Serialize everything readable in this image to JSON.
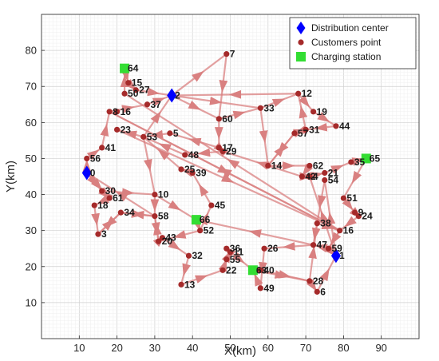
{
  "chart_data": {
    "type": "scatter",
    "xlabel": "X(km)",
    "ylabel": "Y(km)",
    "xlim": [
      0,
      100
    ],
    "ylim": [
      0,
      90
    ],
    "xticks": [
      10,
      20,
      30,
      40,
      50,
      60,
      70,
      80,
      90
    ],
    "yticks": [
      10,
      20,
      30,
      40,
      50,
      60,
      70,
      80
    ],
    "grid": true,
    "legend_position": "top-right",
    "legend": [
      {
        "label": "Distribution center",
        "marker": "diamond",
        "color": "#0000ff"
      },
      {
        "label": "Customers point",
        "marker": "circle",
        "color": "#a52a2a"
      },
      {
        "label": "Charging station",
        "marker": "square",
        "color": "#33dd33"
      }
    ],
    "route_color": "#d98080",
    "depots": [
      {
        "id": "0",
        "x": 12,
        "y": 46
      },
      {
        "id": "2",
        "x": 34.5,
        "y": 67.5
      },
      {
        "id": "1",
        "x": 78,
        "y": 23
      }
    ],
    "customers": [
      {
        "id": "7",
        "x": 49,
        "y": 79
      },
      {
        "id": "15",
        "x": 23,
        "y": 71
      },
      {
        "id": "27",
        "x": 25,
        "y": 69
      },
      {
        "id": "50",
        "x": 22,
        "y": 68
      },
      {
        "id": "37",
        "x": 28,
        "y": 65
      },
      {
        "id": "8",
        "x": 18,
        "y": 63
      },
      {
        "id": "16",
        "x": 20,
        "y": 63
      },
      {
        "id": "23",
        "x": 20,
        "y": 58
      },
      {
        "id": "53",
        "x": 27,
        "y": 56
      },
      {
        "id": "5",
        "x": 34,
        "y": 57
      },
      {
        "id": "41",
        "x": 16,
        "y": 53
      },
      {
        "id": "56",
        "x": 12,
        "y": 50
      },
      {
        "id": "30",
        "x": 16,
        "y": 41
      },
      {
        "id": "61",
        "x": 18,
        "y": 39
      },
      {
        "id": "18",
        "x": 14,
        "y": 37
      },
      {
        "id": "34",
        "x": 21,
        "y": 35
      },
      {
        "id": "3",
        "x": 15,
        "y": 29
      },
      {
        "id": "10",
        "x": 30,
        "y": 40
      },
      {
        "id": "58",
        "x": 30,
        "y": 34
      },
      {
        "id": "20",
        "x": 31,
        "y": 27
      },
      {
        "id": "43",
        "x": 32,
        "y": 28
      },
      {
        "id": "32",
        "x": 39,
        "y": 23
      },
      {
        "id": "13",
        "x": 37,
        "y": 15
      },
      {
        "id": "52",
        "x": 42,
        "y": 30
      },
      {
        "id": "45",
        "x": 45,
        "y": 37
      },
      {
        "id": "25",
        "x": 37,
        "y": 47
      },
      {
        "id": "39",
        "x": 40,
        "y": 46
      },
      {
        "id": "48",
        "x": 38,
        "y": 51
      },
      {
        "id": "17",
        "x": 47,
        "y": 53
      },
      {
        "id": "29",
        "x": 48,
        "y": 52
      },
      {
        "id": "60",
        "x": 47,
        "y": 61
      },
      {
        "id": "33",
        "x": 58,
        "y": 64
      },
      {
        "id": "14",
        "x": 60,
        "y": 48
      },
      {
        "id": "36",
        "x": 49,
        "y": 25
      },
      {
        "id": "11",
        "x": 50,
        "y": 24
      },
      {
        "id": "55",
        "x": 49,
        "y": 22
      },
      {
        "id": "22",
        "x": 48,
        "y": 19
      },
      {
        "id": "26",
        "x": 59,
        "y": 25
      },
      {
        "id": "49",
        "x": 58,
        "y": 14
      },
      {
        "id": "40",
        "x": 58,
        "y": 19
      },
      {
        "id": "12",
        "x": 68,
        "y": 68
      },
      {
        "id": "19",
        "x": 72,
        "y": 63
      },
      {
        "id": "44",
        "x": 78,
        "y": 59
      },
      {
        "id": "57",
        "x": 67,
        "y": 57
      },
      {
        "id": "31",
        "x": 70,
        "y": 58
      },
      {
        "id": "62",
        "x": 71,
        "y": 48
      },
      {
        "id": "42",
        "x": 69,
        "y": 45
      },
      {
        "id": "4",
        "x": 71,
        "y": 45
      },
      {
        "id": "21",
        "x": 75,
        "y": 46
      },
      {
        "id": "54",
        "x": 75,
        "y": 44
      },
      {
        "id": "35",
        "x": 82,
        "y": 49
      },
      {
        "id": "51",
        "x": 80,
        "y": 39
      },
      {
        "id": "9",
        "x": 83,
        "y": 35
      },
      {
        "id": "24",
        "x": 84,
        "y": 34
      },
      {
        "id": "38",
        "x": 73,
        "y": 32
      },
      {
        "id": "16",
        "x": 79,
        "y": 30
      },
      {
        "id": "47",
        "x": 72,
        "y": 26
      },
      {
        "id": "59",
        "x": 76,
        "y": 25
      },
      {
        "id": "28",
        "x": 71,
        "y": 16
      },
      {
        "id": "6",
        "x": 73,
        "y": 13
      }
    ],
    "stations": [
      {
        "id": "64",
        "x": 22,
        "y": 75
      },
      {
        "id": "66",
        "x": 41,
        "y": 33
      },
      {
        "id": "63",
        "x": 56,
        "y": 19
      },
      {
        "id": "65",
        "x": 86,
        "y": 50
      }
    ],
    "routes": [
      [
        "0",
        "56",
        "41",
        "8",
        "16",
        "50",
        "64",
        "15",
        "27",
        "2"
      ],
      [
        "2",
        "7",
        "60",
        "17",
        "29",
        "48",
        "53",
        "23",
        "16",
        "8",
        "37",
        "2"
      ],
      [
        "2",
        "33",
        "12",
        "19",
        "44",
        "31",
        "57",
        "14",
        "62",
        "42",
        "4",
        "21",
        "35",
        "65"
      ],
      [
        "65",
        "51",
        "9",
        "24",
        "16",
        "59",
        "1"
      ],
      [
        "1",
        "54",
        "38",
        "47",
        "26",
        "49",
        "63",
        "40",
        "28",
        "6",
        "1"
      ],
      [
        "1",
        "4",
        "42",
        "29",
        "17",
        "5",
        "53",
        "2"
      ],
      [
        "0",
        "30",
        "61",
        "18",
        "3",
        "34",
        "58",
        "20",
        "43",
        "32",
        "13",
        "22",
        "55",
        "11",
        "36",
        "63"
      ],
      [
        "63",
        "28",
        "38",
        "16",
        "59",
        "47",
        "66",
        "52",
        "45",
        "39",
        "25",
        "53",
        "10",
        "58",
        "0"
      ],
      [
        "2",
        "60",
        "33",
        "14",
        "57",
        "31",
        "12",
        "2"
      ],
      [
        "0",
        "61",
        "30",
        "10",
        "66",
        "52",
        "20",
        "58",
        "34",
        "3"
      ]
    ]
  }
}
